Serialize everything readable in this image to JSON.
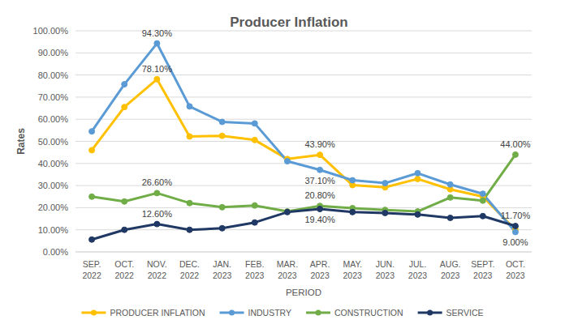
{
  "chart_data": {
    "type": "line",
    "title": "Producer Inflation",
    "x_label": "PERIOD",
    "y_label": "Rates",
    "categories": [
      "SEP. 2022",
      "OCT. 2022",
      "NOV. 2022",
      "DEC. 2022",
      "JAN. 2023",
      "FEB. 2023",
      "MAR. 2023",
      "APR. 2023",
      "MAY. 2023",
      "JUN. 2023",
      "JUL. 2023",
      "AUG. 2023",
      "SEPT. 2023",
      "OCT. 2023"
    ],
    "ylim": [
      0,
      100
    ],
    "yticks": [
      {
        "value": 0,
        "label": "0.00%"
      },
      {
        "value": 10,
        "label": "10.00%"
      },
      {
        "value": 20,
        "label": "20.00%"
      },
      {
        "value": 30,
        "label": "30.00%"
      },
      {
        "value": 40,
        "label": "40.00%"
      },
      {
        "value": 50,
        "label": "50.00%"
      },
      {
        "value": 60,
        "label": "60.00%"
      },
      {
        "value": 70,
        "label": "70.00%"
      },
      {
        "value": 80,
        "label": "80.00%"
      },
      {
        "value": 90,
        "label": "90.00%"
      },
      {
        "value": 100,
        "label": "100.00%"
      }
    ],
    "grid": true,
    "legend": "bottom",
    "data_labels": true,
    "series": [
      {
        "name": "PRODUCER INFLATION",
        "color": "#ffc000",
        "marker": "circle",
        "values": [
          46,
          65.5,
          78.1,
          52.2,
          52.5,
          50.6,
          42,
          43.9,
          30.2,
          29.2,
          33,
          28.3,
          25,
          10
        ],
        "value_labels": [
          null,
          null,
          "78.10%",
          null,
          null,
          null,
          null,
          "43.90%",
          null,
          null,
          null,
          null,
          null,
          null
        ]
      },
      {
        "name": "INDUSTRY",
        "color": "#5b9bd5",
        "marker": "circle",
        "values": [
          54.5,
          75.8,
          94.3,
          65.8,
          58.8,
          58.1,
          41,
          37.1,
          32.4,
          31.1,
          35.6,
          30.5,
          26.3,
          9
        ],
        "value_labels": [
          null,
          null,
          "94.30%",
          null,
          null,
          null,
          null,
          "37.10%",
          null,
          null,
          null,
          null,
          null,
          "9.00%"
        ]
      },
      {
        "name": "CONSTRUCTION",
        "color": "#70ad47",
        "marker": "circle",
        "values": [
          25,
          22.8,
          26.6,
          22.1,
          20.2,
          21,
          18.3,
          20.8,
          19.8,
          19,
          18.3,
          24.6,
          23.2,
          44
        ],
        "value_labels": [
          null,
          null,
          "26.60%",
          null,
          null,
          null,
          null,
          "20.80%",
          null,
          null,
          null,
          null,
          null,
          "44.00%"
        ]
      },
      {
        "name": "SERVICE",
        "color": "#203864",
        "marker": "circle",
        "values": [
          5.6,
          10,
          12.6,
          10,
          10.7,
          13.3,
          18,
          19.4,
          18,
          17.6,
          16.9,
          15.4,
          16.2,
          11.7
        ],
        "value_labels": [
          null,
          null,
          "12.60%",
          null,
          null,
          null,
          null,
          "19.40%",
          null,
          null,
          null,
          null,
          null,
          "11.70%"
        ]
      }
    ]
  }
}
